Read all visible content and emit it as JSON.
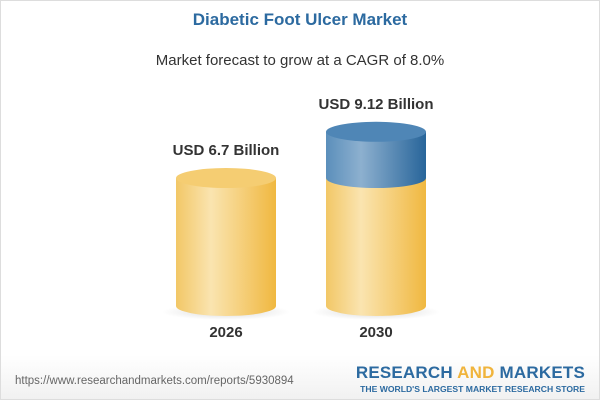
{
  "title": "Diabetic Foot Ulcer Market",
  "subtitle": "Market forecast to grow at a CAGR of 8.0%",
  "chart_data": {
    "type": "bar",
    "style": "3d-cylinder",
    "categories": [
      "2026",
      "2030"
    ],
    "values": [
      6.7,
      9.12
    ],
    "data_labels": [
      "USD 6.7 Billion",
      "USD 9.12 Billion"
    ],
    "unit": "USD Billion",
    "colors": {
      "base": "#f3c45a",
      "growth": "#3f7bad"
    }
  },
  "footer": {
    "url": "https://www.researchandmarkets.com/reports/5930894",
    "logo_word1": "RESEARCH",
    "logo_word2": "AND",
    "logo_word3": "MARKETS",
    "tagline": "THE WORLD'S LARGEST MARKET RESEARCH STORE"
  }
}
